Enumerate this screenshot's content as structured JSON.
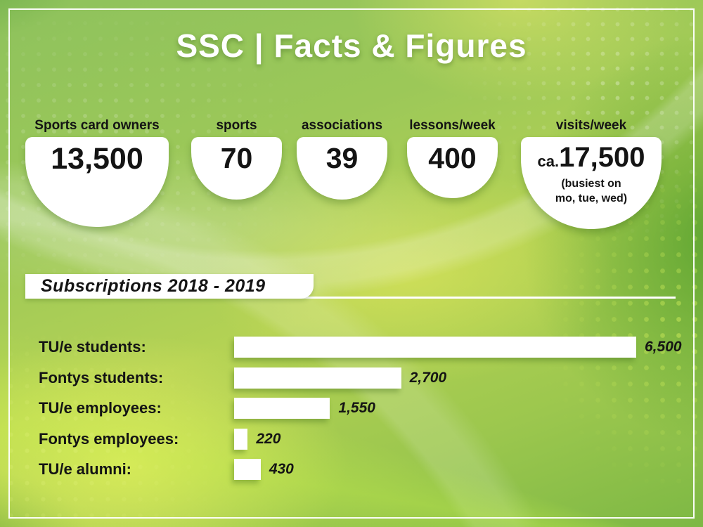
{
  "title": "SSC | Facts & Figures",
  "stats": [
    {
      "label": "Sports card owners",
      "value": "13,500"
    },
    {
      "label": "sports",
      "value": "70"
    },
    {
      "label": "associations",
      "value": "39"
    },
    {
      "label": "lessons/week",
      "value": "400"
    },
    {
      "label": "visits/week",
      "prefix": "ca.",
      "value": "17,500",
      "note_line1": "(busiest on",
      "note_line2": "mo, tue, wed)"
    }
  ],
  "section": {
    "title": "Subscriptions 2018 - 2019"
  },
  "chart_data": {
    "type": "bar",
    "orientation": "horizontal",
    "title": "Subscriptions 2018 - 2019",
    "categories": [
      "TU/e students:",
      "Fontys students:",
      "TU/e employees:",
      "Fontys employees:",
      "TU/e alumni:"
    ],
    "values": [
      6500,
      2700,
      1550,
      220,
      430
    ],
    "value_labels": [
      "6,500",
      "2,700",
      "1,550",
      "220",
      "430"
    ],
    "xlim": [
      0,
      6500
    ],
    "bar_color": "#ffffff",
    "grid": false,
    "legend": false
  },
  "colors": {
    "background_green": "#9cc858",
    "background_yellow": "#d9e063",
    "dark_green": "#5ba23a",
    "bar_fill": "#ffffff",
    "text_dark": "#141414",
    "title_white": "#ffffff"
  }
}
